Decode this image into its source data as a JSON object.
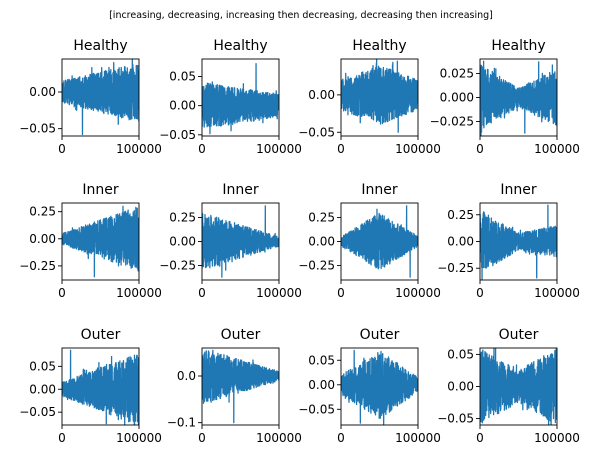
{
  "figure": {
    "suptitle": "[increasing, decreasing, increasing then decreasing, decreasing then increasing]",
    "series_color": "#1f77b4"
  },
  "chart_data": [
    {
      "type": "line",
      "title": "Healthy",
      "pattern": "increasing",
      "xlim": [
        0,
        100000
      ],
      "ylim": [
        -0.06,
        0.045
      ],
      "x_ticks": [
        0,
        100000
      ],
      "x_tick_labels": [
        "0",
        "100000"
      ],
      "y_ticks": [
        -0.05,
        0.0
      ],
      "y_tick_labels": [
        "−0.05",
        "0.00"
      ],
      "y_envelope": {
        "start": 0.015,
        "end": 0.04,
        "min_value": -0.058,
        "max_value": 0.04
      },
      "grid": false,
      "legend": "none"
    },
    {
      "type": "line",
      "title": "Healthy",
      "pattern": "decreasing",
      "xlim": [
        0,
        100000
      ],
      "ylim": [
        -0.052,
        0.08
      ],
      "x_ticks": [
        0,
        100000
      ],
      "x_tick_labels": [
        "0",
        "100000"
      ],
      "y_ticks": [
        -0.05,
        0.0,
        0.05
      ],
      "y_tick_labels": [
        "−0.05",
        "0.00",
        "0.05"
      ],
      "y_envelope": {
        "start": 0.04,
        "end": 0.02,
        "min_value": -0.048,
        "max_value": 0.072
      },
      "grid": false,
      "legend": "none"
    },
    {
      "type": "line",
      "title": "Healthy",
      "pattern": "increasing then decreasing",
      "xlim": [
        0,
        100000
      ],
      "ylim": [
        -0.055,
        0.048
      ],
      "x_ticks": [
        0,
        100000
      ],
      "x_tick_labels": [
        "0",
        "100000"
      ],
      "y_ticks": [
        -0.05,
        0.0
      ],
      "y_tick_labels": [
        "−0.05",
        "0.00"
      ],
      "y_envelope": {
        "start": 0.02,
        "peak": 0.04,
        "end": 0.02,
        "min_value": -0.05,
        "max_value": 0.045
      },
      "grid": false,
      "legend": "none"
    },
    {
      "type": "line",
      "title": "Healthy",
      "pattern": "decreasing then increasing",
      "xlim": [
        0,
        100000
      ],
      "ylim": [
        -0.04,
        0.04
      ],
      "x_ticks": [
        0,
        100000
      ],
      "x_tick_labels": [
        "0",
        "100000"
      ],
      "y_ticks": [
        -0.025,
        0.0,
        0.025
      ],
      "y_tick_labels": [
        "−0.025",
        "0.000",
        "0.025"
      ],
      "y_envelope": {
        "start": 0.035,
        "trough": 0.01,
        "end": 0.03,
        "min_value": -0.037,
        "max_value": 0.037
      },
      "grid": false,
      "legend": "none"
    },
    {
      "type": "line",
      "title": "Inner",
      "pattern": "increasing",
      "xlim": [
        0,
        100000
      ],
      "ylim": [
        -0.38,
        0.33
      ],
      "x_ticks": [
        0,
        100000
      ],
      "x_tick_labels": [
        "0",
        "100000"
      ],
      "y_ticks": [
        -0.25,
        0.0,
        0.25
      ],
      "y_tick_labels": [
        "−0.25",
        "0.00",
        "0.25"
      ],
      "y_envelope": {
        "start": 0.05,
        "end": 0.3,
        "min_value": -0.35,
        "max_value": 0.3
      },
      "grid": false,
      "legend": "none"
    },
    {
      "type": "line",
      "title": "Inner",
      "pattern": "decreasing",
      "xlim": [
        0,
        100000
      ],
      "ylim": [
        -0.4,
        0.4
      ],
      "x_ticks": [
        0,
        100000
      ],
      "x_tick_labels": [
        "0",
        "100000"
      ],
      "y_ticks": [
        -0.25,
        0.0,
        0.25
      ],
      "y_tick_labels": [
        "−0.25",
        "0.00",
        "0.25"
      ],
      "y_envelope": {
        "start": 0.3,
        "end": 0.05,
        "min_value": -0.37,
        "max_value": 0.37
      },
      "grid": false,
      "legend": "none"
    },
    {
      "type": "line",
      "title": "Inner",
      "pattern": "increasing then decreasing",
      "xlim": [
        0,
        100000
      ],
      "ylim": [
        -0.4,
        0.4
      ],
      "x_ticks": [
        0,
        100000
      ],
      "x_tick_labels": [
        "0",
        "100000"
      ],
      "y_ticks": [
        -0.25,
        0.0,
        0.25
      ],
      "y_tick_labels": [
        "−0.25",
        "0.00",
        "0.25"
      ],
      "y_envelope": {
        "start": 0.05,
        "peak": 0.3,
        "end": 0.05,
        "min_value": -0.37,
        "max_value": 0.37
      },
      "grid": false,
      "legend": "none"
    },
    {
      "type": "line",
      "title": "Inner",
      "pattern": "decreasing then increasing",
      "xlim": [
        0,
        100000
      ],
      "ylim": [
        -0.36,
        0.36
      ],
      "x_ticks": [
        0,
        100000
      ],
      "x_tick_labels": [
        "0",
        "100000"
      ],
      "y_ticks": [
        -0.25,
        0.0,
        0.25
      ],
      "y_tick_labels": [
        "−0.25",
        "0.00",
        "0.25"
      ],
      "y_envelope": {
        "start": 0.3,
        "trough": 0.08,
        "end": 0.15,
        "min_value": -0.34,
        "max_value": 0.34
      },
      "grid": false,
      "legend": "none"
    },
    {
      "type": "line",
      "title": "Outer",
      "pattern": "increasing",
      "xlim": [
        0,
        100000
      ],
      "ylim": [
        -0.078,
        0.09
      ],
      "x_ticks": [
        0,
        100000
      ],
      "x_tick_labels": [
        "0",
        "100000"
      ],
      "y_ticks": [
        -0.05,
        0.0,
        0.05
      ],
      "y_tick_labels": [
        "−0.05",
        "0.00",
        "0.05"
      ],
      "y_envelope": {
        "start": 0.015,
        "end": 0.08,
        "min_value": -0.075,
        "max_value": 0.085
      },
      "grid": false,
      "legend": "none"
    },
    {
      "type": "line",
      "title": "Outer",
      "pattern": "decreasing",
      "xlim": [
        0,
        100000
      ],
      "ylim": [
        -0.105,
        0.06
      ],
      "x_ticks": [
        0,
        100000
      ],
      "x_tick_labels": [
        "0",
        "100000"
      ],
      "y_ticks": [
        -0.1,
        0.0
      ],
      "y_tick_labels": [
        "−0.1",
        "0.0"
      ],
      "y_envelope": {
        "start": 0.06,
        "end": 0.01,
        "min_value": -0.1,
        "max_value": 0.055
      },
      "grid": false,
      "legend": "none"
    },
    {
      "type": "line",
      "title": "Outer",
      "pattern": "increasing then decreasing",
      "xlim": [
        0,
        100000
      ],
      "ylim": [
        -0.082,
        0.075
      ],
      "x_ticks": [
        0,
        100000
      ],
      "x_tick_labels": [
        "0",
        "100000"
      ],
      "y_ticks": [
        -0.05,
        0.0,
        0.05
      ],
      "y_tick_labels": [
        "−0.05",
        "0.00",
        "0.05"
      ],
      "y_envelope": {
        "start": 0.02,
        "peak": 0.07,
        "end": 0.015,
        "min_value": -0.078,
        "max_value": 0.07
      },
      "grid": false,
      "legend": "none"
    },
    {
      "type": "line",
      "title": "Outer",
      "pattern": "decreasing then increasing",
      "xlim": [
        0,
        100000
      ],
      "ylim": [
        -0.06,
        0.06
      ],
      "x_ticks": [
        0,
        100000
      ],
      "x_tick_labels": [
        "0",
        "100000"
      ],
      "y_ticks": [
        -0.05,
        0.0,
        0.05
      ],
      "y_tick_labels": [
        "−0.05",
        "0.00",
        "0.05"
      ],
      "y_envelope": {
        "start": 0.06,
        "trough": 0.025,
        "end": 0.06,
        "min_value": -0.06,
        "max_value": 0.06
      },
      "grid": false,
      "legend": "none"
    }
  ]
}
